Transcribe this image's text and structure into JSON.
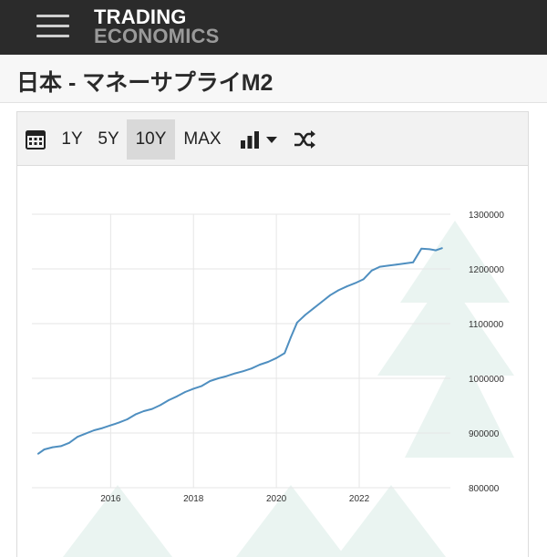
{
  "header": {
    "logo_line1": "TRADING",
    "logo_line2": "ECONOMICS",
    "menu_icon": "hamburger-menu-icon"
  },
  "page": {
    "title": "日本 - マネーサプライM2"
  },
  "toolbar": {
    "calendar_icon": "calendar-icon",
    "ranges": [
      "1Y",
      "5Y",
      "10Y",
      "MAX"
    ],
    "active_range": "10Y",
    "chart_type_icon": "bar-chart-icon",
    "dropdown_icon": "caret-down-icon",
    "shuffle_icon": "shuffle-icon"
  },
  "colors": {
    "topbar": "#2b2b2b",
    "line": "#4f8fc0",
    "grid": "#e6e6e6",
    "watermark": "#eaf4f1"
  },
  "chart_data": {
    "type": "line",
    "title": "",
    "xlabel": "",
    "ylabel": "",
    "x_ticks": [
      "2016",
      "2018",
      "2020",
      "2022"
    ],
    "y_ticks": [
      "800000",
      "900000",
      "1000000",
      "1100000",
      "1200000",
      "1300000"
    ],
    "ylim": [
      800000,
      1300000
    ],
    "xlim": [
      2014.1,
      2024.2
    ],
    "grid": true,
    "series": [
      {
        "name": "",
        "x": [
          2014.25,
          2014.4,
          2014.6,
          2014.8,
          2015.0,
          2015.2,
          2015.4,
          2015.6,
          2015.8,
          2016.0,
          2016.2,
          2016.4,
          2016.6,
          2016.8,
          2017.0,
          2017.2,
          2017.4,
          2017.6,
          2017.8,
          2018.0,
          2018.2,
          2018.4,
          2018.6,
          2018.8,
          2019.0,
          2019.2,
          2019.4,
          2019.6,
          2019.8,
          2020.0,
          2020.2,
          2020.35,
          2020.5,
          2020.7,
          2020.9,
          2021.1,
          2021.3,
          2021.5,
          2021.7,
          2021.9,
          2022.1,
          2022.3,
          2022.5,
          2022.7,
          2022.9,
          2023.1,
          2023.3,
          2023.5,
          2023.7,
          2023.85,
          2024.0
        ],
        "y": [
          862000,
          870000,
          874000,
          876000,
          882000,
          893000,
          899000,
          905000,
          909000,
          914000,
          919000,
          925000,
          934000,
          940000,
          944000,
          951000,
          960000,
          967000,
          975000,
          981000,
          986000,
          995000,
          1000000,
          1004000,
          1009000,
          1013000,
          1018000,
          1025000,
          1030000,
          1037000,
          1046000,
          1075000,
          1102000,
          1116000,
          1128000,
          1140000,
          1152000,
          1161000,
          1168000,
          1174000,
          1181000,
          1197000,
          1204000,
          1206000,
          1208000,
          1210000,
          1212000,
          1237000,
          1236000,
          1234000,
          1238000
        ]
      }
    ]
  }
}
